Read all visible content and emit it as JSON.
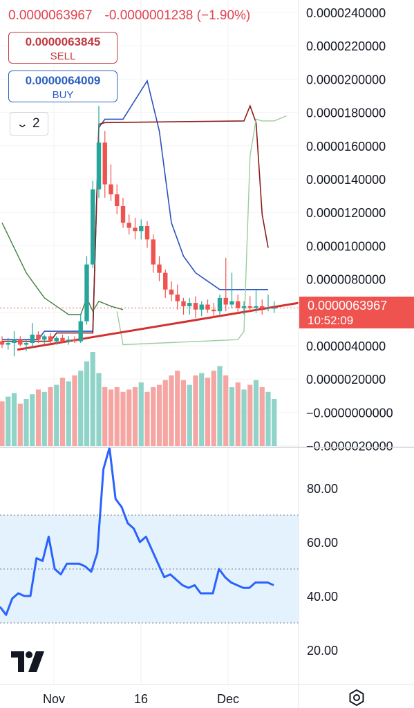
{
  "header": {
    "last_price": "0.0000063967",
    "change": "-0.0000001238 (−1.90%)"
  },
  "sell": {
    "price": "0.0000063845",
    "label": "SELL"
  },
  "buy": {
    "price": "0.0000064009",
    "label": "BUY"
  },
  "indicators_toggle": {
    "count": "2"
  },
  "current_price_label": {
    "value": "0.0000063967",
    "countdown": "10:52:09"
  },
  "colors": {
    "up": "#26a69a",
    "down": "#ef5350",
    "rsi_line": "#2962ff",
    "rsi_band": "#e3f2fd",
    "trendline": "#d32f2f"
  },
  "chart_data": [
    {
      "type": "candlestick",
      "title": "",
      "price_axis_ticks": [
        "0.0000240000",
        "0.0000220000",
        "0.0000200000",
        "0.0000180000",
        "0.0000160000",
        "0.0000140000",
        "0.0000120000",
        "0.0000100000",
        "0.0000080000",
        "0.0000060000",
        "0.0000040000",
        "0.0000020000",
        "−0.0000000000",
        "−0.0000020000"
      ],
      "y_range": [
        -2e-06,
        2.4e-05
      ],
      "x_axis_ticks": [
        "Nov",
        "16",
        "Dec"
      ],
      "candles": [
        {
          "o": 4.4,
          "h": 4.7,
          "l": 4.0,
          "c": 4.2
        },
        {
          "o": 4.2,
          "h": 4.6,
          "l": 3.9,
          "c": 4.3
        },
        {
          "o": 4.3,
          "h": 5.0,
          "l": 3.5,
          "c": 4.5
        },
        {
          "o": 4.5,
          "h": 4.7,
          "l": 4.1,
          "c": 4.2
        },
        {
          "o": 4.2,
          "h": 4.5,
          "l": 3.8,
          "c": 4.3
        },
        {
          "o": 4.3,
          "h": 5.5,
          "l": 4.0,
          "c": 4.8
        },
        {
          "o": 4.8,
          "h": 5.0,
          "l": 4.3,
          "c": 4.5
        },
        {
          "o": 4.5,
          "h": 4.8,
          "l": 4.2,
          "c": 4.7
        },
        {
          "o": 4.7,
          "h": 4.9,
          "l": 4.3,
          "c": 4.4
        },
        {
          "o": 4.4,
          "h": 4.7,
          "l": 4.2,
          "c": 4.6
        },
        {
          "o": 4.6,
          "h": 4.8,
          "l": 4.3,
          "c": 4.4
        },
        {
          "o": 4.4,
          "h": 4.7,
          "l": 4.2,
          "c": 4.5
        },
        {
          "o": 4.5,
          "h": 4.7,
          "l": 4.3,
          "c": 4.4
        },
        {
          "o": 4.4,
          "h": 6.0,
          "l": 4.3,
          "c": 5.6
        },
        {
          "o": 5.6,
          "h": 9.5,
          "l": 5.4,
          "c": 9.0
        },
        {
          "o": 9.0,
          "h": 14.0,
          "l": 8.8,
          "c": 13.5
        },
        {
          "o": 13.5,
          "h": 18.5,
          "l": 13.0,
          "c": 16.3
        },
        {
          "o": 16.3,
          "h": 17.0,
          "l": 13.0,
          "c": 13.8
        },
        {
          "o": 13.8,
          "h": 15.0,
          "l": 12.8,
          "c": 13.2
        },
        {
          "o": 13.2,
          "h": 13.8,
          "l": 12.0,
          "c": 12.5
        },
        {
          "o": 12.5,
          "h": 13.0,
          "l": 11.2,
          "c": 11.5
        },
        {
          "o": 11.5,
          "h": 12.0,
          "l": 10.8,
          "c": 11.2
        },
        {
          "o": 11.2,
          "h": 11.8,
          "l": 10.5,
          "c": 11.0
        },
        {
          "o": 11.0,
          "h": 11.7,
          "l": 10.5,
          "c": 11.3
        },
        {
          "o": 11.3,
          "h": 11.6,
          "l": 10.0,
          "c": 10.5
        },
        {
          "o": 10.5,
          "h": 10.8,
          "l": 8.5,
          "c": 9.0
        },
        {
          "o": 9.0,
          "h": 9.5,
          "l": 8.0,
          "c": 8.5
        },
        {
          "o": 8.5,
          "h": 8.7,
          "l": 7.0,
          "c": 7.5
        },
        {
          "o": 7.5,
          "h": 8.0,
          "l": 6.8,
          "c": 7.2
        },
        {
          "o": 7.2,
          "h": 7.8,
          "l": 6.3,
          "c": 6.8
        },
        {
          "o": 6.8,
          "h": 7.0,
          "l": 6.0,
          "c": 6.5
        },
        {
          "o": 6.5,
          "h": 7.0,
          "l": 6.0,
          "c": 6.7
        },
        {
          "o": 6.7,
          "h": 7.1,
          "l": 5.8,
          "c": 6.3
        },
        {
          "o": 6.3,
          "h": 6.8,
          "l": 5.9,
          "c": 6.6
        },
        {
          "o": 6.6,
          "h": 6.9,
          "l": 6.1,
          "c": 6.3
        },
        {
          "o": 6.3,
          "h": 6.7,
          "l": 5.8,
          "c": 6.2
        },
        {
          "o": 6.2,
          "h": 7.2,
          "l": 6.0,
          "c": 7.0
        },
        {
          "o": 7.0,
          "h": 9.4,
          "l": 6.2,
          "c": 6.6
        },
        {
          "o": 6.6,
          "h": 8.5,
          "l": 6.4,
          "c": 6.8
        },
        {
          "o": 6.8,
          "h": 7.2,
          "l": 6.1,
          "c": 6.4
        },
        {
          "o": 6.4,
          "h": 6.8,
          "l": 6.0,
          "c": 6.5
        },
        {
          "o": 6.5,
          "h": 7.1,
          "l": 6.2,
          "c": 6.4
        },
        {
          "o": 6.4,
          "h": 7.5,
          "l": 6.1,
          "c": 6.5
        },
        {
          "o": 6.5,
          "h": 6.9,
          "l": 6.0,
          "c": 6.4
        },
        {
          "o": 6.4,
          "h": 7.2,
          "l": 6.2,
          "c": 6.4
        },
        {
          "o": 6.4,
          "h": 6.8,
          "l": 6.1,
          "c": 6.4
        }
      ],
      "volume_heights": [
        0.38,
        0.42,
        0.45,
        0.36,
        0.4,
        0.44,
        0.48,
        0.46,
        0.5,
        0.52,
        0.58,
        0.55,
        0.6,
        0.64,
        0.72,
        0.8,
        0.62,
        0.5,
        0.48,
        0.5,
        0.46,
        0.48,
        0.5,
        0.54,
        0.46,
        0.5,
        0.52,
        0.56,
        0.6,
        0.64,
        0.56,
        0.52,
        0.6,
        0.62,
        0.58,
        0.64,
        0.68,
        0.6,
        0.5,
        0.54,
        0.48,
        0.52,
        0.56,
        0.5,
        0.46,
        0.4
      ]
    },
    {
      "type": "line",
      "title": "",
      "y_ticks": [
        "80.00",
        "60.00",
        "40.00",
        "20.00"
      ],
      "y_range": [
        12,
        97
      ],
      "band": [
        30,
        70
      ],
      "mid_line": 50,
      "values": [
        36,
        33,
        39,
        41,
        40,
        40,
        54,
        53,
        62,
        50,
        48,
        52,
        52,
        52,
        51,
        49,
        56,
        87,
        95,
        76,
        73,
        67,
        65,
        60,
        62,
        57,
        52,
        47,
        48,
        46,
        44,
        43,
        44,
        41,
        41,
        41,
        50,
        47,
        45,
        44,
        43,
        43,
        45,
        45,
        45,
        44
      ]
    }
  ]
}
